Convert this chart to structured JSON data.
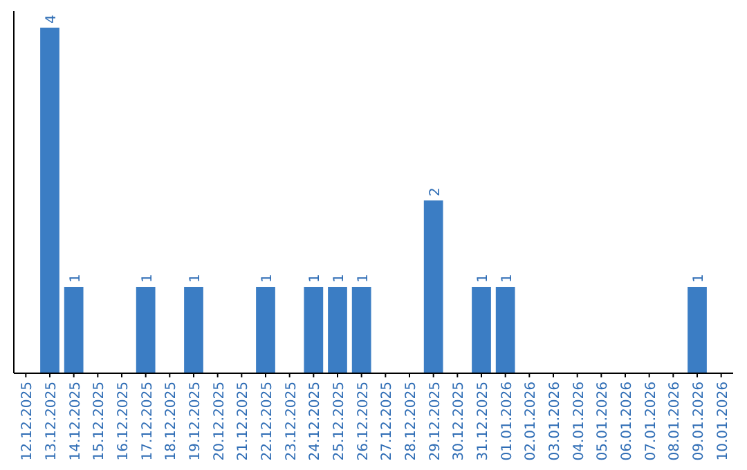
{
  "chart_data": {
    "type": "bar",
    "categories": [
      "12.12.2025",
      "13.12.2025",
      "14.12.2025",
      "15.12.2025",
      "16.12.2025",
      "17.12.2025",
      "18.12.2025",
      "19.12.2025",
      "20.12.2025",
      "21.12.2025",
      "22.12.2025",
      "23.12.2025",
      "24.12.2025",
      "25.12.2025",
      "26.12.2025",
      "27.12.2025",
      "28.12.2025",
      "29.12.2025",
      "30.12.2025",
      "31.12.2025",
      "01.01.2026",
      "02.01.2026",
      "03.01.2026",
      "04.01.2026",
      "05.01.2026",
      "06.01.2026",
      "07.01.2026",
      "08.01.2026",
      "09.01.2026",
      "10.01.2026"
    ],
    "values": [
      0,
      4,
      1,
      0,
      0,
      1,
      0,
      1,
      0,
      0,
      1,
      0,
      1,
      1,
      1,
      0,
      0,
      2,
      0,
      1,
      1,
      0,
      0,
      0,
      0,
      0,
      0,
      0,
      1,
      0
    ],
    "value_labels": [
      null,
      "4",
      "1",
      null,
      null,
      "1",
      null,
      "1",
      null,
      null,
      "1",
      null,
      "1",
      "1",
      "1",
      null,
      null,
      "2",
      null,
      "1",
      "1",
      null,
      null,
      null,
      null,
      null,
      null,
      null,
      "1",
      null
    ],
    "color": "#3b7dc4"
  }
}
